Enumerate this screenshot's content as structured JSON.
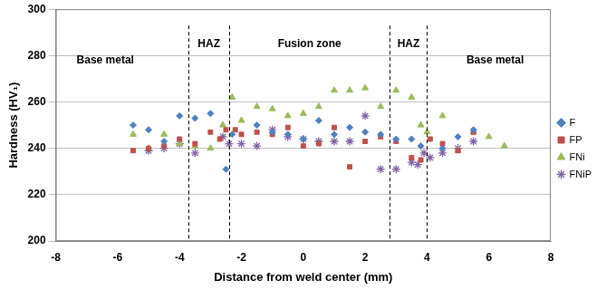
{
  "chart_data": {
    "type": "scatter",
    "x_label": "Distance from weld center (mm)",
    "y_label": "Hardness (HV₁)",
    "xlim": [
      -8,
      8
    ],
    "xticks": [
      -8,
      -6,
      -4,
      -2,
      0,
      2,
      4,
      6,
      8
    ],
    "ylim": [
      200,
      300
    ],
    "yticks": [
      200,
      220,
      240,
      260,
      280,
      300
    ],
    "grid": "y",
    "legend": "right",
    "zone_boundaries": [
      -3.7,
      -2.4,
      2.8,
      4.0
    ],
    "annotations": [
      {
        "text": "Base metal",
        "x": -6.4,
        "y": 278
      },
      {
        "text": "HAZ",
        "x": -3.05,
        "y": 285
      },
      {
        "text": "Fusion zone",
        "x": 0.2,
        "y": 285
      },
      {
        "text": "HAZ",
        "x": 3.4,
        "y": 285
      },
      {
        "text": "Base metal",
        "x": 6.2,
        "y": 278
      }
    ],
    "series": [
      {
        "name": "F",
        "color": "#4f81bd",
        "marker": "diamond",
        "x": [
          -5.5,
          -5,
          -4.5,
          -4,
          -3.5,
          -3,
          -2.5,
          -2.3,
          -1.5,
          -1,
          -0.5,
          0,
          0.5,
          1,
          1.5,
          2,
          2.5,
          3,
          3.5,
          3.8,
          4.5,
          5,
          5.5
        ],
        "values": [
          250,
          248,
          243,
          254,
          253,
          255,
          231,
          246,
          250,
          247,
          246,
          244,
          252,
          246,
          249,
          247,
          246,
          244,
          244,
          241,
          240,
          245,
          248
        ]
      },
      {
        "name": "FP",
        "color": "#c0504d",
        "marker": "square",
        "x": [
          -5.5,
          -5,
          -4.5,
          -4,
          -3.5,
          -3,
          -2.7,
          -2.5,
          -2.2,
          -2,
          -1.5,
          -1,
          -0.5,
          0,
          0.5,
          1,
          1.5,
          2,
          2.5,
          3,
          3.5,
          3.8,
          4.1,
          4.5,
          5,
          5.5
        ],
        "values": [
          239,
          240,
          241,
          244,
          242,
          247,
          244,
          248,
          248,
          246,
          247,
          246,
          249,
          241,
          242,
          249,
          232,
          243,
          245,
          243,
          236,
          235,
          244,
          242,
          239,
          247
        ]
      },
      {
        "name": "FNi",
        "color": "#9bbb59",
        "marker": "triangle",
        "x": [
          -5.5,
          -5,
          -4.5,
          -4,
          -3.5,
          -3,
          -2.6,
          -2.3,
          -2,
          -1.5,
          -1,
          -0.5,
          0,
          0.5,
          1,
          1.5,
          2,
          2.5,
          3,
          3.5,
          3.8,
          4,
          4.5,
          5,
          5.5,
          6,
          6.5
        ],
        "values": [
          246,
          240,
          246,
          242,
          241,
          240,
          250,
          262,
          252,
          258,
          257,
          254,
          255,
          258,
          265,
          265,
          266,
          258,
          265,
          262,
          250,
          247,
          254,
          239,
          247,
          245,
          241
        ]
      },
      {
        "name": "FNiP",
        "color": "#8064a2",
        "marker": "star",
        "x": [
          -5,
          -4.5,
          -4,
          -3.5,
          -2.6,
          -2.4,
          -2,
          -1.5,
          -1,
          -0.5,
          0,
          0.5,
          1,
          1.5,
          2,
          2.5,
          3,
          3.5,
          3.7,
          3.9,
          4.1,
          4.5,
          5,
          5.5
        ],
        "values": [
          239,
          240,
          242,
          238,
          245,
          242,
          242,
          241,
          248,
          245,
          244,
          243,
          243,
          243,
          254,
          231,
          231,
          234,
          233,
          238,
          236,
          238,
          240,
          243
        ]
      }
    ]
  }
}
